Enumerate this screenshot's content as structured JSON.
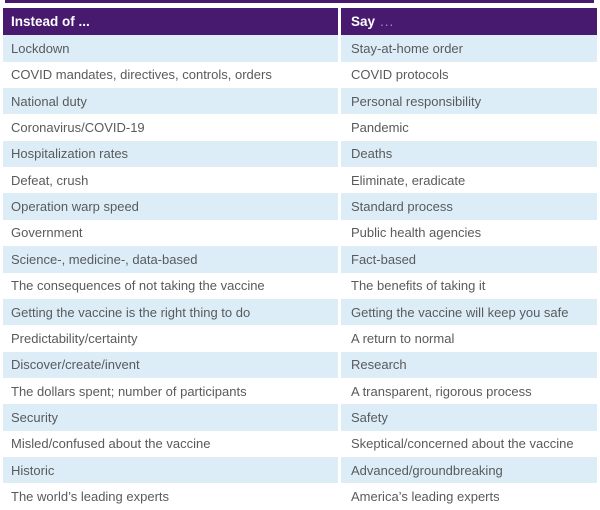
{
  "colors": {
    "header_bg": "#481A6F",
    "row_alt_bg": "#DCEDF8",
    "row_bg": "#FFFFFF",
    "text": "#595A5C",
    "header_text": "#FFFFFF",
    "header_ellipsis": "#A08FBE"
  },
  "table": {
    "columns": [
      {
        "label": "Instead of ..."
      },
      {
        "label": "Say",
        "ellipsis": "..."
      }
    ],
    "rows": [
      {
        "instead": "Lockdown",
        "say": "Stay-at-home order"
      },
      {
        "instead": "COVID mandates, directives, controls, orders",
        "say": "COVID protocols"
      },
      {
        "instead": "National duty",
        "say": "Personal responsibility"
      },
      {
        "instead": "Coronavirus/COVID-19",
        "say": "Pandemic"
      },
      {
        "instead": "Hospitalization rates",
        "say": "Deaths"
      },
      {
        "instead": "Defeat, crush",
        "say": "Eliminate, eradicate"
      },
      {
        "instead": "Operation warp speed",
        "say": "Standard process"
      },
      {
        "instead": "Government",
        "say": "Public health agencies"
      },
      {
        "instead": "Science-, medicine-, data-based",
        "say": "Fact-based"
      },
      {
        "instead": "The consequences of not taking the vaccine",
        "say": "The benefits of taking it"
      },
      {
        "instead": "Getting the vaccine is the right thing to do",
        "say": "Getting the vaccine will keep you safe"
      },
      {
        "instead": "Predictability/certainty",
        "say": "A return to normal"
      },
      {
        "instead": "Discover/create/invent",
        "say": "Research"
      },
      {
        "instead": "The dollars spent; number of participants",
        "say": "A transparent, rigorous process"
      },
      {
        "instead": "Security",
        "say": "Safety"
      },
      {
        "instead": "Misled/confused about the vaccine",
        "say": "Skeptical/concerned about the vaccine"
      },
      {
        "instead": "Historic",
        "say": "Advanced/groundbreaking"
      },
      {
        "instead": "The world’s leading experts",
        "say": "America’s leading experts"
      }
    ]
  }
}
